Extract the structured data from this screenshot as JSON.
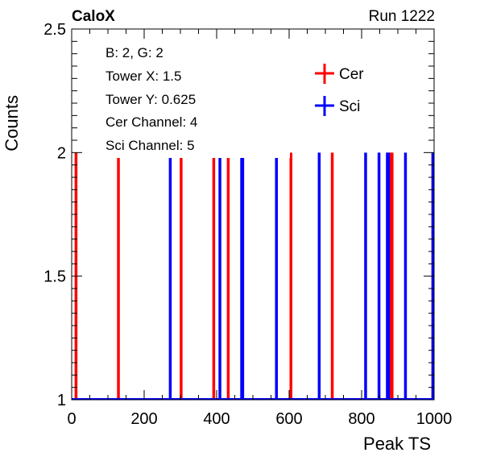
{
  "header": {
    "left": "CaloX",
    "right": "Run 1222"
  },
  "info_box": {
    "lines": [
      "B: 2, G: 2",
      "Tower X: 1.5",
      "Tower Y: 0.625",
      "Cer Channel: 4",
      "Sci Channel: 5"
    ]
  },
  "colors": {
    "cer": "#ff0000",
    "sci": "#0000ff",
    "axis": "#000000",
    "background": "#ffffff"
  },
  "chart_data": {
    "type": "bar",
    "title": "",
    "xlabel": "Peak TS",
    "ylabel": "Counts",
    "xlim": [
      0,
      1000
    ],
    "ylim": [
      1,
      2.5
    ],
    "x_ticks": [
      "0",
      "200",
      "400",
      "600",
      "800",
      "1000"
    ],
    "y_ticks": [
      "1",
      "1.5",
      "2",
      "2.5"
    ],
    "grid": false,
    "legend_position": "top-right",
    "series": [
      {
        "name": "Cer",
        "x": [
          12,
          129,
          302,
          392,
          432,
          605,
          719,
          878,
          884,
          1000
        ],
        "values": [
          2,
          2,
          2,
          2,
          2,
          2,
          2,
          2,
          2,
          2
        ]
      },
      {
        "name": "Sci",
        "x": [
          272,
          409,
          469,
          472,
          565,
          683,
          811,
          848,
          871,
          874,
          921,
          999
        ],
        "values": [
          2,
          2,
          2,
          2,
          2,
          2,
          2,
          2,
          2,
          2,
          2,
          2
        ]
      }
    ]
  }
}
